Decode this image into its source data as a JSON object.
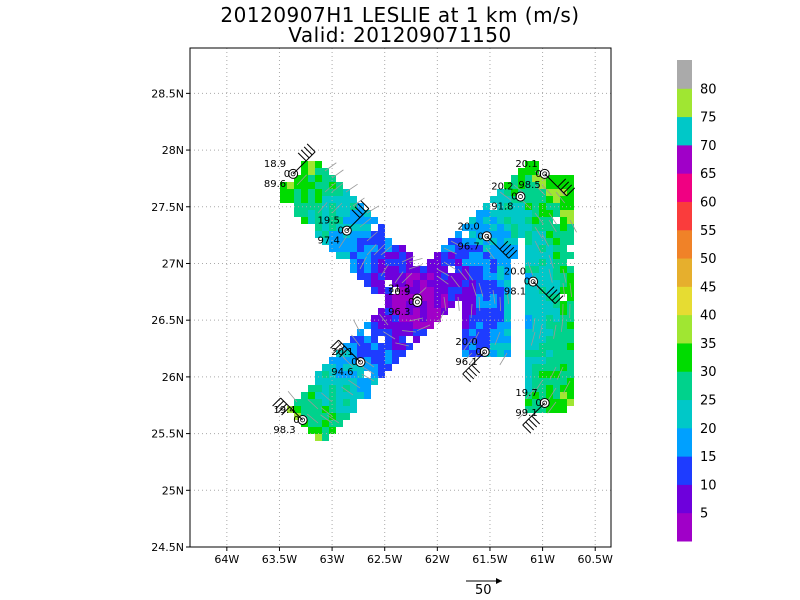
{
  "title": {
    "line1": "20120907H1 LESLIE at 1 km (m/s)",
    "line2": "Valid: 201209071150"
  },
  "axes": {
    "x_ticks": [
      "64W",
      "63.5W",
      "63W",
      "62.5W",
      "62W",
      "61.5W",
      "61W",
      "60.5W"
    ],
    "y_ticks": [
      "28.5N",
      "28N",
      "27.5N",
      "27N",
      "26.5N",
      "26N",
      "25.5N",
      "25N",
      "24.5N"
    ],
    "lon_range": [
      -64.35,
      -60.35
    ],
    "lat_range": [
      24.5,
      28.9
    ],
    "grid": "dotted"
  },
  "colorbar": {
    "labels": [
      "5",
      "10",
      "15",
      "20",
      "25",
      "30",
      "35",
      "40",
      "45",
      "50",
      "55",
      "60",
      "65",
      "70",
      "75",
      "80"
    ],
    "colors": [
      "#a000c8",
      "#6e00dc",
      "#1e3cff",
      "#00a0ff",
      "#00c8c8",
      "#00d28c",
      "#00dc00",
      "#a0e632",
      "#e6dc32",
      "#e6af2d",
      "#f08228",
      "#fa3c3c",
      "#f00082",
      "#a000c8",
      "#00c8c8",
      "#a0e632",
      "#aaaaaa"
    ]
  },
  "reference_vector": {
    "value": "50"
  },
  "stations": [
    {
      "lon": -63.37,
      "lat": 27.79,
      "wind_speed": "18.9",
      "flag": "0",
      "pressure": "89.6",
      "barb_dir": "NE"
    },
    {
      "lon": -62.86,
      "lat": 27.29,
      "wind_speed": "19.5",
      "flag": "0",
      "pressure": "97.4",
      "barb_dir": "NE"
    },
    {
      "lon": -62.19,
      "lat": 26.69,
      "wind_speed": "21.2",
      "flag": "",
      "pressure": "",
      "barb_dir": ""
    },
    {
      "lon": -62.19,
      "lat": 26.66,
      "wind_speed": "20.9",
      "flag": "0",
      "pressure": "96.3",
      "barb_dir": ""
    },
    {
      "lon": -62.73,
      "lat": 26.13,
      "wind_speed": "20.1",
      "flag": "0",
      "pressure": "94.6",
      "barb_dir": "NW"
    },
    {
      "lon": -63.28,
      "lat": 25.62,
      "wind_speed": "19.4",
      "flag": "0",
      "pressure": "98.3",
      "barb_dir": "NW"
    },
    {
      "lon": -61.53,
      "lat": 27.24,
      "wind_speed": "20.0",
      "flag": "0",
      "pressure": "96.7",
      "barb_dir": "SE"
    },
    {
      "lon": -60.98,
      "lat": 27.79,
      "wind_speed": "20.1",
      "flag": "0",
      "pressure": "",
      "barb_dir": "SE"
    },
    {
      "lon": -61.21,
      "lat": 27.59,
      "wind_speed": "20.2",
      "flag": "0",
      "pressure": "91.8",
      "barb_dir": ""
    },
    {
      "lon": -61.09,
      "lat": 26.84,
      "wind_speed": "20.0",
      "flag": "0",
      "pressure": "98.1",
      "barb_dir": "SE"
    },
    {
      "lon": -61.55,
      "lat": 26.22,
      "wind_speed": "20.0",
      "flag": "0",
      "pressure": "96.1",
      "barb_dir": "SW"
    },
    {
      "lon": -60.98,
      "lat": 25.77,
      "wind_speed": "19.7",
      "flag": "0",
      "pressure": "99.1",
      "barb_dir": "SW"
    }
  ],
  "extra_labels": [
    "98.5"
  ],
  "legs": [
    {
      "lat1": 27.79,
      "lon1": -63.37,
      "lat2": 26.69,
      "lon2": -62.19
    },
    {
      "lat1": 26.69,
      "lon1": -62.19,
      "lat2": 25.62,
      "lon2": -63.28
    },
    {
      "lat1": 26.69,
      "lon1": -62.19,
      "lat2": 27.79,
      "lon2": -60.98
    },
    {
      "lat1": 27.24,
      "lon1": -61.53,
      "lat2": 26.22,
      "lon2": -61.55
    },
    {
      "lat1": 27.79,
      "lon1": -60.98,
      "lat2": 25.77,
      "lon2": -60.98
    }
  ]
}
